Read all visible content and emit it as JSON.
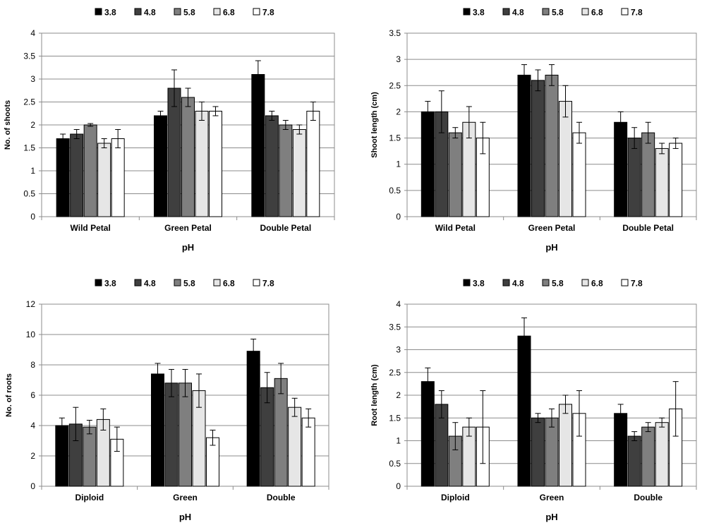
{
  "palette": [
    "#000000",
    "#3f3f3f",
    "#7f7f7f",
    "#e6e6e6",
    "#ffffff"
  ],
  "chart_data": [
    {
      "type": "bar",
      "xlabel": "pH",
      "ylabel": "No. of shoots",
      "ylim": [
        0,
        4
      ],
      "yticks": [
        "0",
        "0.5",
        "1",
        "1.5",
        "2",
        "2.5",
        "3",
        "3.5",
        "4"
      ],
      "grid": true,
      "legend": "top",
      "categories": [
        "Wild Petal",
        "Green Petal",
        "Double Petal"
      ],
      "series": [
        {
          "name": "3.8",
          "values": [
            1.7,
            2.2,
            3.1
          ],
          "errors": [
            0.1,
            0.1,
            0.3
          ]
        },
        {
          "name": "4.8",
          "values": [
            1.8,
            2.8,
            2.2
          ],
          "errors": [
            0.1,
            0.4,
            0.1
          ]
        },
        {
          "name": "5.8",
          "values": [
            2.0,
            2.6,
            2.0
          ],
          "errors": [
            0.03,
            0.2,
            0.1
          ]
        },
        {
          "name": "6.8",
          "values": [
            1.6,
            2.3,
            1.9
          ],
          "errors": [
            0.1,
            0.2,
            0.1
          ]
        },
        {
          "name": "7.8",
          "values": [
            1.7,
            2.3,
            2.3
          ],
          "errors": [
            0.2,
            0.1,
            0.2
          ]
        }
      ]
    },
    {
      "type": "bar",
      "xlabel": "pH",
      "ylabel": "Shoot length (cm)",
      "ylim": [
        0,
        3.5
      ],
      "yticks": [
        "0",
        "0.5",
        "1",
        "1.5",
        "2",
        "2.5",
        "3",
        "3.5"
      ],
      "grid": true,
      "legend": "top",
      "categories": [
        "Wild Petal",
        "Green Petal",
        "Double Petal"
      ],
      "series": [
        {
          "name": "3.8",
          "values": [
            2.0,
            2.7,
            1.8
          ],
          "errors": [
            0.2,
            0.2,
            0.2
          ]
        },
        {
          "name": "4.8",
          "values": [
            2.0,
            2.6,
            1.5
          ],
          "errors": [
            0.4,
            0.2,
            0.2
          ]
        },
        {
          "name": "5.8",
          "values": [
            1.6,
            2.7,
            1.6
          ],
          "errors": [
            0.1,
            0.2,
            0.2
          ]
        },
        {
          "name": "6.8",
          "values": [
            1.8,
            2.2,
            1.3
          ],
          "errors": [
            0.3,
            0.3,
            0.1
          ]
        },
        {
          "name": "7.8",
          "values": [
            1.5,
            1.6,
            1.4
          ],
          "errors": [
            0.3,
            0.2,
            0.1
          ]
        }
      ]
    },
    {
      "type": "bar",
      "xlabel": "pH",
      "ylabel": "No. of roots",
      "ylim": [
        0,
        12
      ],
      "yticks": [
        "0",
        "2",
        "4",
        "6",
        "8",
        "10",
        "12"
      ],
      "grid": true,
      "legend": "top",
      "categories": [
        "Diploid",
        "Green",
        "Double"
      ],
      "series": [
        {
          "name": "3.8",
          "values": [
            4.0,
            7.4,
            8.9
          ],
          "errors": [
            0.5,
            0.7,
            0.8
          ]
        },
        {
          "name": "4.8",
          "values": [
            4.1,
            6.8,
            6.5
          ],
          "errors": [
            1.1,
            0.9,
            1.0
          ]
        },
        {
          "name": "5.8",
          "values": [
            3.9,
            6.8,
            7.1
          ],
          "errors": [
            0.45,
            0.9,
            1.0
          ]
        },
        {
          "name": "6.8",
          "values": [
            4.4,
            6.3,
            5.2
          ],
          "errors": [
            0.7,
            1.1,
            0.6
          ]
        },
        {
          "name": "7.8",
          "values": [
            3.1,
            3.2,
            4.5
          ],
          "errors": [
            0.8,
            0.5,
            0.6
          ]
        }
      ]
    },
    {
      "type": "bar",
      "xlabel": "pH",
      "ylabel": "Root length (cm)",
      "ylim": [
        0,
        4
      ],
      "yticks": [
        "0",
        "0.5",
        "1",
        "1.5",
        "2",
        "2.5",
        "3",
        "3.5",
        "4"
      ],
      "grid": true,
      "legend": "top",
      "categories": [
        "Diploid",
        "Green",
        "Double"
      ],
      "series": [
        {
          "name": "3.8",
          "values": [
            2.3,
            3.3,
            1.6
          ],
          "errors": [
            0.3,
            0.4,
            0.2
          ]
        },
        {
          "name": "4.8",
          "values": [
            1.8,
            1.5,
            1.1
          ],
          "errors": [
            0.3,
            0.1,
            0.1
          ]
        },
        {
          "name": "5.8",
          "values": [
            1.1,
            1.5,
            1.3
          ],
          "errors": [
            0.3,
            0.2,
            0.1
          ]
        },
        {
          "name": "6.8",
          "values": [
            1.3,
            1.8,
            1.4
          ],
          "errors": [
            0.2,
            0.2,
            0.1
          ]
        },
        {
          "name": "7.8",
          "values": [
            1.3,
            1.6,
            1.7
          ],
          "errors": [
            0.8,
            0.5,
            0.6
          ]
        }
      ]
    }
  ]
}
